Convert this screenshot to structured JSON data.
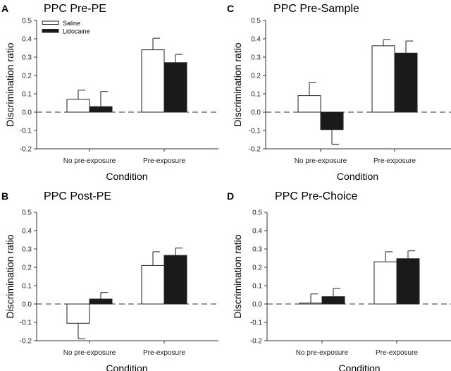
{
  "legend": {
    "saline": "Saline",
    "lidocaine": "Lidocaine"
  },
  "colors": {
    "saline": "#ffffff",
    "lidocaine": "#1a1a1a",
    "axis": "#333333"
  },
  "chart_data": [
    {
      "type": "bar",
      "panel": "A",
      "title": "PPC Pre-PE",
      "xlabel": "Condition",
      "ylabel": "Discrimination ratio",
      "ylim": [
        -0.2,
        0.5
      ],
      "yticks": [
        "0.5",
        "0.4",
        "0.3",
        "0.2",
        "0.1",
        "0.0",
        "-0.1",
        "-0.2"
      ],
      "categories": [
        "No pre-exposure",
        "Pre-exposure"
      ],
      "legend_position": "top-left",
      "series": [
        {
          "name": "Saline",
          "values": [
            0.07,
            0.34
          ],
          "errors": [
            0.05,
            0.063
          ]
        },
        {
          "name": "Lidocaine",
          "values": [
            0.03,
            0.27
          ],
          "errors": [
            0.083,
            0.045
          ]
        }
      ]
    },
    {
      "type": "bar",
      "panel": "C",
      "title": "PPC Pre-Sample",
      "xlabel": "Condition",
      "ylabel": "Discrimination ratio",
      "ylim": [
        -0.2,
        0.5
      ],
      "yticks": [
        "0.5",
        "0.4",
        "0.3",
        "0.2",
        "0.1",
        "0.0",
        "-0.1",
        "-0.2"
      ],
      "categories": [
        "No pre-exposure",
        "Pre-exposure"
      ],
      "series": [
        {
          "name": "Saline",
          "values": [
            0.09,
            0.362
          ],
          "errors": [
            0.073,
            0.033
          ]
        },
        {
          "name": "Lidocaine",
          "values": [
            -0.095,
            0.322
          ],
          "errors": [
            0.08,
            0.066
          ]
        }
      ]
    },
    {
      "type": "bar",
      "panel": "B",
      "title": "PPC Post-PE",
      "xlabel": "Condition",
      "ylabel": "Discrimination ratio",
      "ylim": [
        -0.2,
        0.5
      ],
      "yticks": [
        "0.5",
        "0.4",
        "0.3",
        "0.2",
        "0.1",
        "0.0",
        "-0.1",
        "-0.2"
      ],
      "categories": [
        "No pre-exposure",
        "Pre-exposure"
      ],
      "series": [
        {
          "name": "Saline",
          "values": [
            -0.105,
            0.21
          ],
          "errors": [
            0.085,
            0.075
          ]
        },
        {
          "name": "Lidocaine",
          "values": [
            0.027,
            0.265
          ],
          "errors": [
            0.036,
            0.04
          ]
        }
      ]
    },
    {
      "type": "bar",
      "panel": "D",
      "title": "PPC Pre-Choice",
      "xlabel": "Condition",
      "ylabel": "Discrimination ratio",
      "ylim": [
        -0.2,
        0.5
      ],
      "yticks": [
        "0.5",
        "0.4",
        "0.3",
        "0.2",
        "0.1",
        "0.0",
        "-0.1",
        "-0.2"
      ],
      "categories": [
        "No pre-exposure",
        "Pre-exposure"
      ],
      "series": [
        {
          "name": "Saline",
          "values": [
            0.005,
            0.23
          ],
          "errors": [
            0.05,
            0.055
          ]
        },
        {
          "name": "Lidocaine",
          "values": [
            0.04,
            0.247
          ],
          "errors": [
            0.045,
            0.043
          ]
        }
      ]
    }
  ]
}
